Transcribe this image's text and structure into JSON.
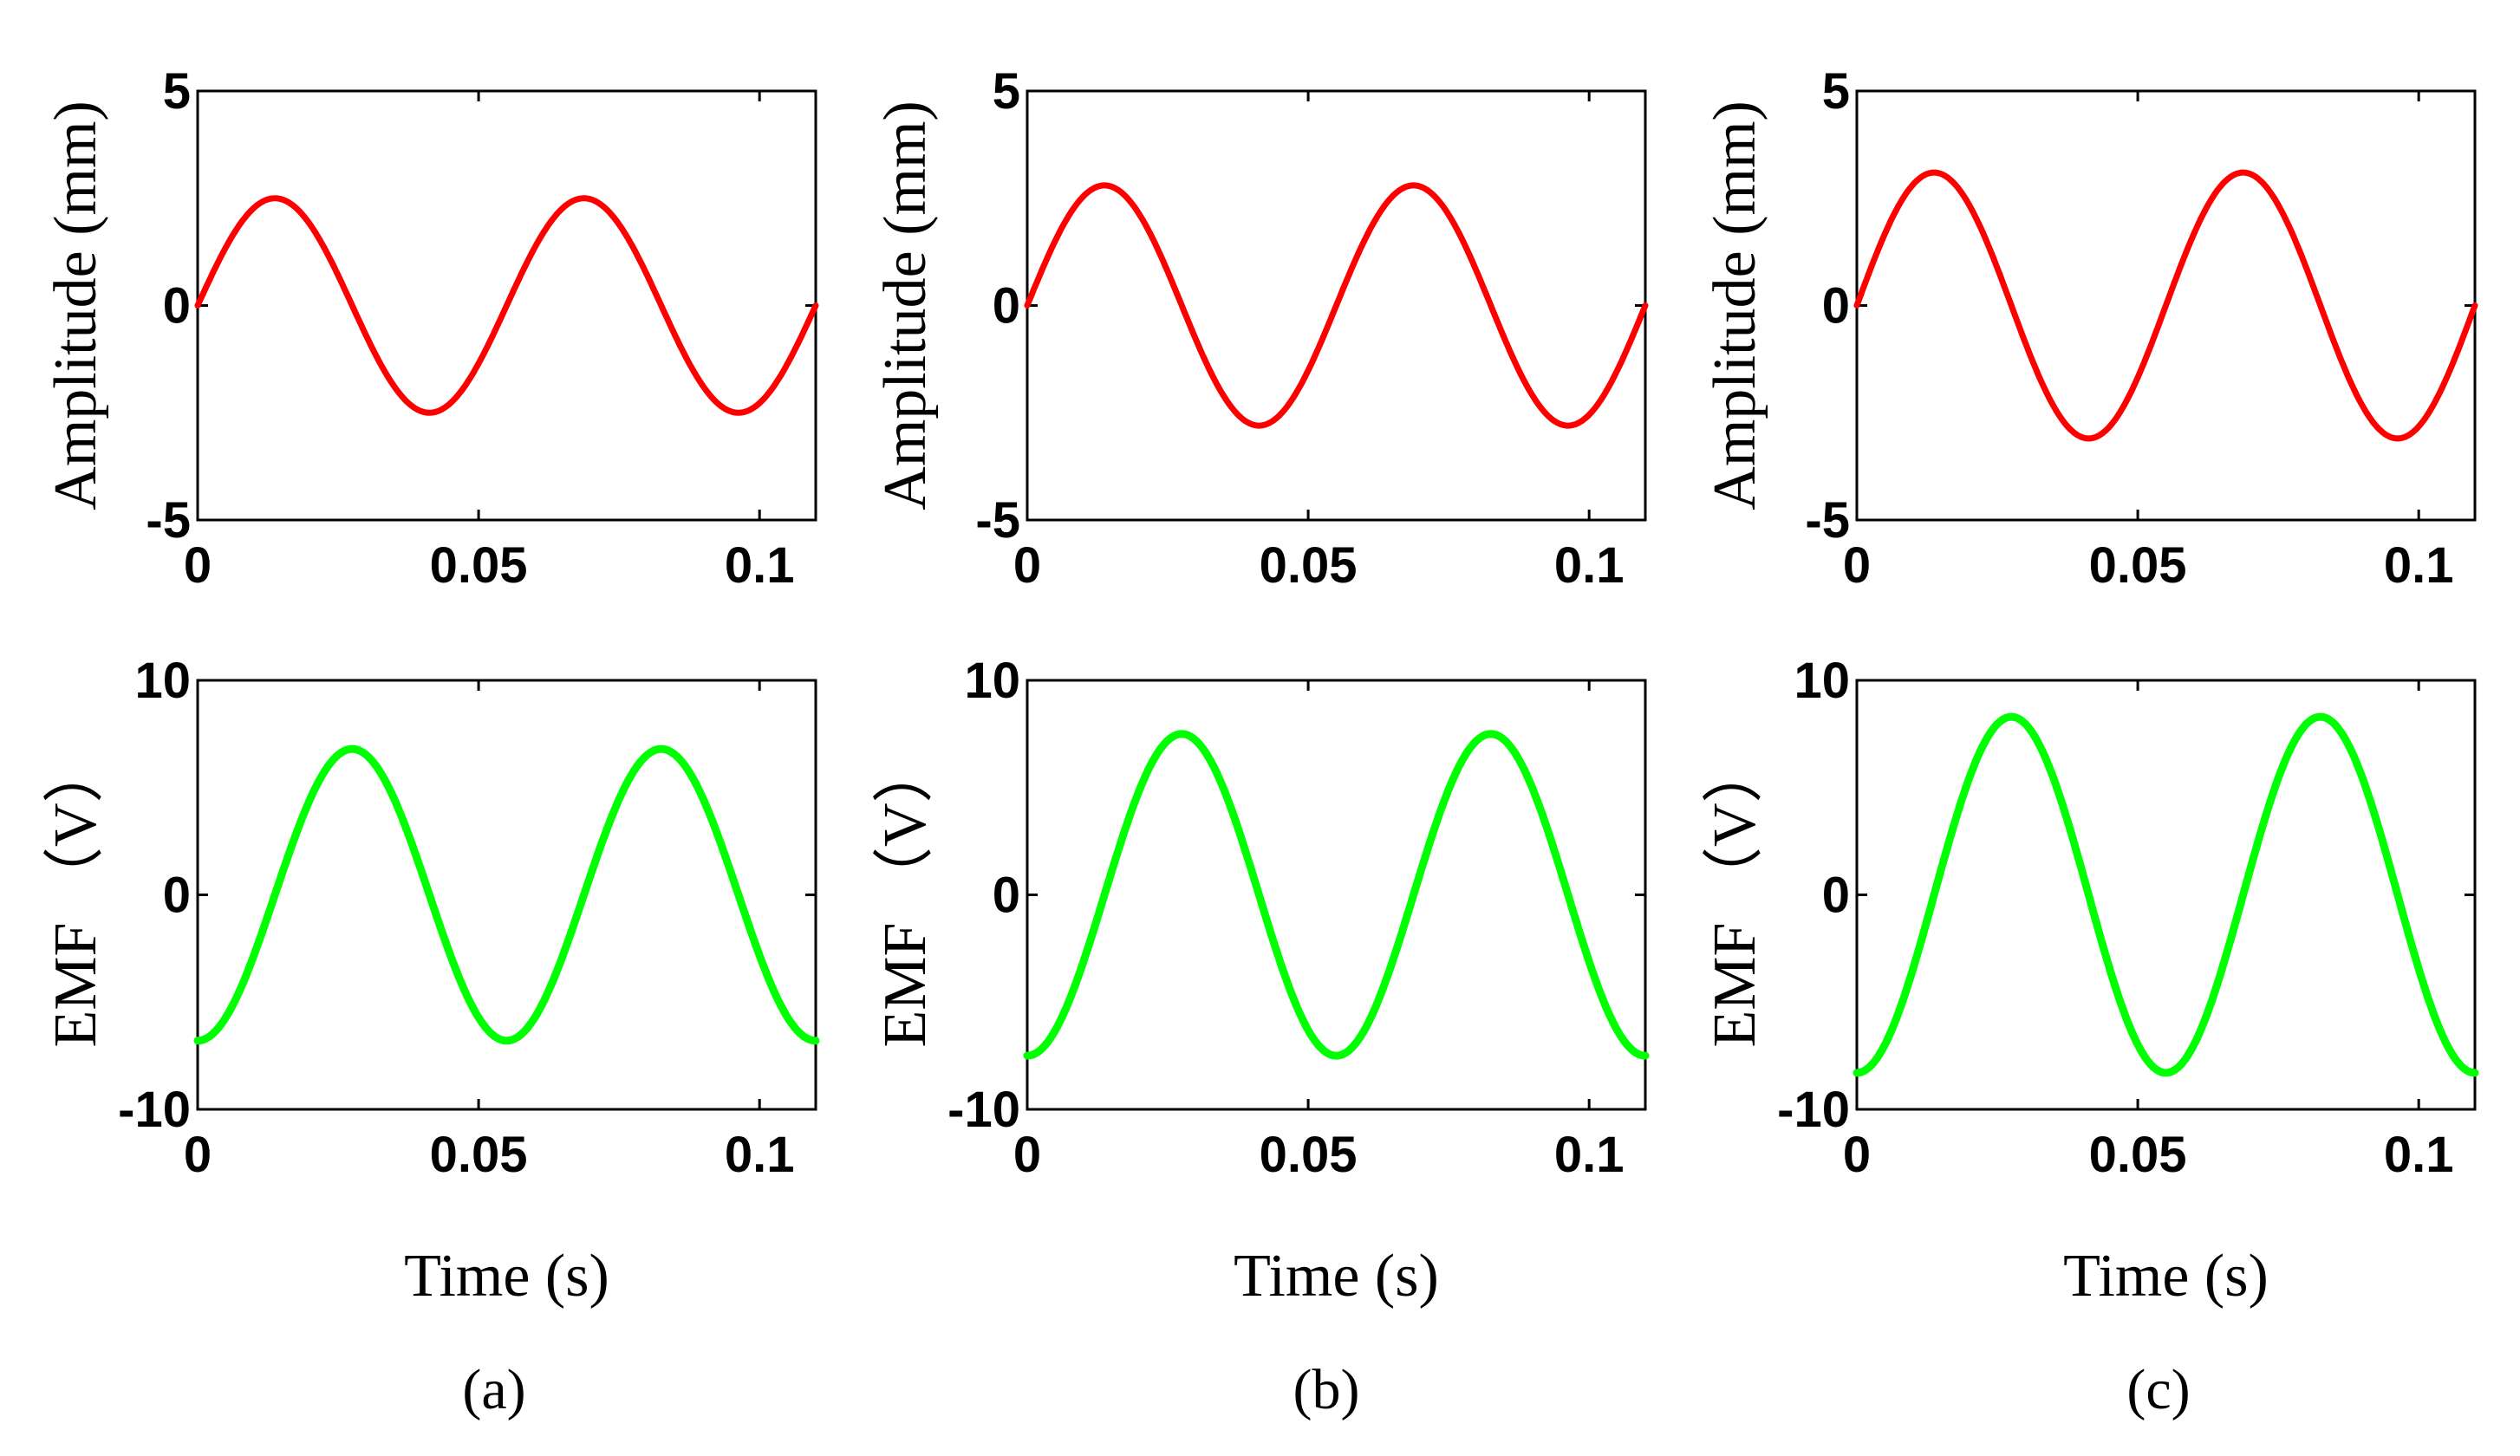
{
  "chart_data": [
    {
      "id": "a-amplitude",
      "panel": "a",
      "row": "top",
      "type": "line",
      "xlabel": "",
      "ylabel": "Amplitude (mm)",
      "xlim": [
        0,
        0.11
      ],
      "ylim": [
        -5,
        5
      ],
      "xticks": [
        0,
        0.05,
        0.1
      ],
      "xtick_labels": [
        "0",
        "0.05",
        "0.1"
      ],
      "yticks": [
        -5,
        0,
        5
      ],
      "ytick_labels": [
        "-5",
        "0",
        "5"
      ],
      "series": [
        {
          "name": "Amplitude",
          "color": "#ff0000",
          "function": "sine",
          "amplitude": 2.5,
          "period": 0.055,
          "phase_deg": 0,
          "x_start": 0,
          "x_end": 0.11
        }
      ]
    },
    {
      "id": "a-emf",
      "panel": "a",
      "row": "bottom",
      "type": "line",
      "xlabel": "Time (s)",
      "ylabel": "EMF （V）",
      "xlim": [
        0,
        0.11
      ],
      "ylim": [
        -10,
        10
      ],
      "xticks": [
        0,
        0.05,
        0.1
      ],
      "xtick_labels": [
        "0",
        "0.05",
        "0.1"
      ],
      "yticks": [
        -10,
        0,
        10
      ],
      "ytick_labels": [
        "-10",
        "0",
        "10"
      ],
      "series": [
        {
          "name": "EMF",
          "color": "#00ff00",
          "function": "sine",
          "amplitude": 6.8,
          "period": 0.055,
          "phase_deg": -90,
          "x_start": 0,
          "x_end": 0.11
        }
      ]
    },
    {
      "id": "b-amplitude",
      "panel": "b",
      "row": "top",
      "type": "line",
      "xlabel": "",
      "ylabel": "Amplitude (mm)",
      "xlim": [
        0,
        0.11
      ],
      "ylim": [
        -5,
        5
      ],
      "xticks": [
        0,
        0.05,
        0.1
      ],
      "xtick_labels": [
        "0",
        "0.05",
        "0.1"
      ],
      "yticks": [
        -5,
        0,
        5
      ],
      "ytick_labels": [
        "-5",
        "0",
        "5"
      ],
      "series": [
        {
          "name": "Amplitude",
          "color": "#ff0000",
          "function": "sine",
          "amplitude": 2.8,
          "period": 0.055,
          "phase_deg": 0,
          "x_start": 0,
          "x_end": 0.11
        }
      ]
    },
    {
      "id": "b-emf",
      "panel": "b",
      "row": "bottom",
      "type": "line",
      "xlabel": "Time (s)",
      "ylabel": "EMF （V）",
      "xlim": [
        0,
        0.11
      ],
      "ylim": [
        -10,
        10
      ],
      "xticks": [
        0,
        0.05,
        0.1
      ],
      "xtick_labels": [
        "0",
        "0.05",
        "0.1"
      ],
      "yticks": [
        -10,
        0,
        10
      ],
      "ytick_labels": [
        "-10",
        "0",
        "10"
      ],
      "series": [
        {
          "name": "EMF",
          "color": "#00ff00",
          "function": "sine",
          "amplitude": 7.5,
          "period": 0.055,
          "phase_deg": -90,
          "x_start": 0,
          "x_end": 0.11
        }
      ]
    },
    {
      "id": "c-amplitude",
      "panel": "c",
      "row": "top",
      "type": "line",
      "xlabel": "",
      "ylabel": "Amplitude (mm)",
      "xlim": [
        0,
        0.11
      ],
      "ylim": [
        -5,
        5
      ],
      "xticks": [
        0,
        0.05,
        0.1
      ],
      "xtick_labels": [
        "0",
        "0.05",
        "0.1"
      ],
      "yticks": [
        -5,
        0,
        5
      ],
      "ytick_labels": [
        "-5",
        "0",
        "5"
      ],
      "series": [
        {
          "name": "Amplitude",
          "color": "#ff0000",
          "function": "sine",
          "amplitude": 3.1,
          "period": 0.055,
          "phase_deg": 0,
          "x_start": 0,
          "x_end": 0.11
        }
      ]
    },
    {
      "id": "c-emf",
      "panel": "c",
      "row": "bottom",
      "type": "line",
      "xlabel": "Time (s)",
      "ylabel": "EMF （V）",
      "xlim": [
        0,
        0.11
      ],
      "ylim": [
        -10,
        10
      ],
      "xticks": [
        0,
        0.05,
        0.1
      ],
      "xtick_labels": [
        "0",
        "0.05",
        "0.1"
      ],
      "yticks": [
        -10,
        0,
        10
      ],
      "ytick_labels": [
        "-10",
        "0",
        "10"
      ],
      "series": [
        {
          "name": "EMF",
          "color": "#00ff00",
          "function": "sine",
          "amplitude": 8.3,
          "period": 0.055,
          "phase_deg": -90,
          "x_start": 0,
          "x_end": 0.11
        }
      ]
    }
  ],
  "panel_labels": {
    "a": "(a)",
    "b": "(b)",
    "c": "(c)"
  }
}
